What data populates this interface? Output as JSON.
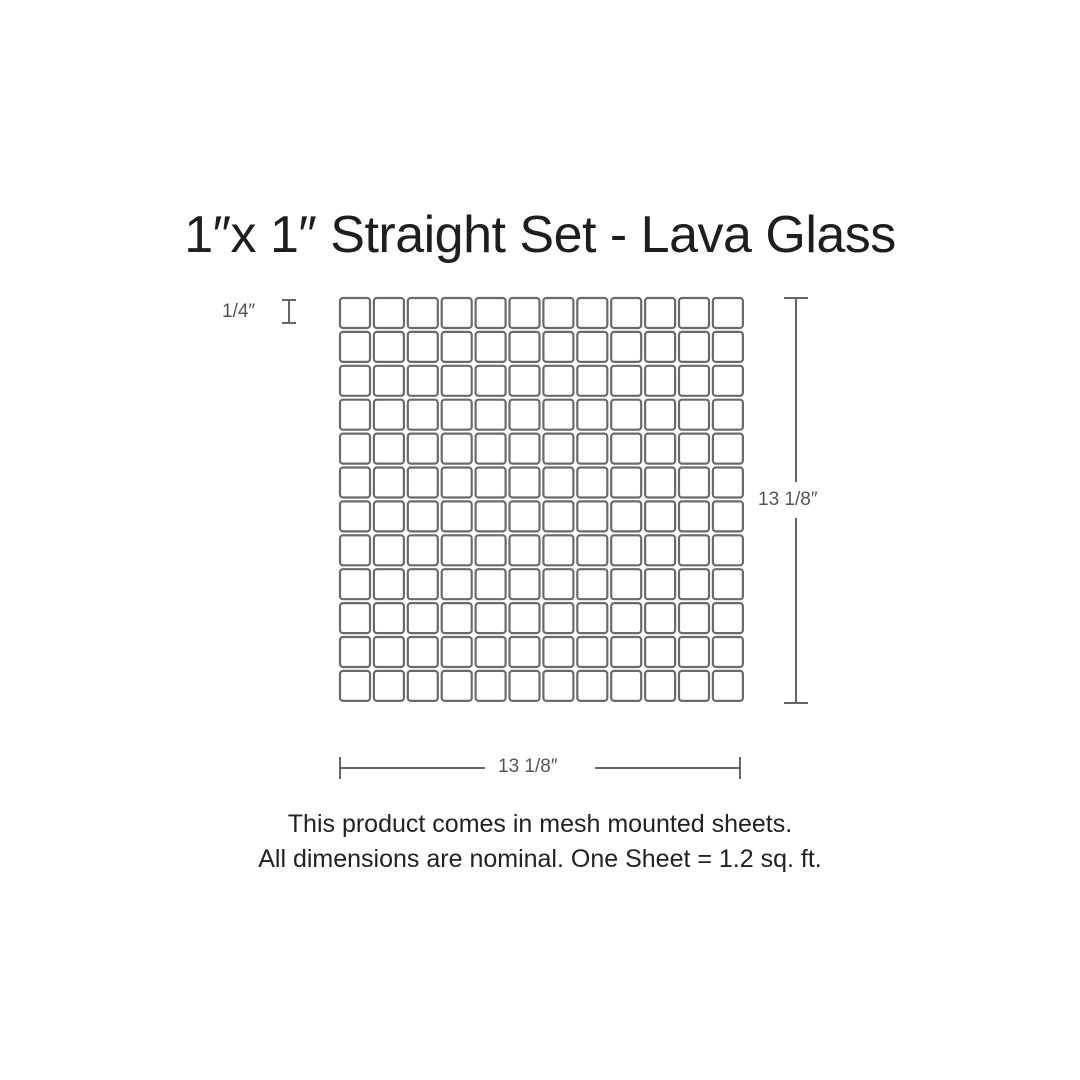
{
  "title": "1″x 1″ Straight Set - Lava Glass",
  "grout_label": "1/4″",
  "height_label": "13 1/8″",
  "width_label": "13 1/8″",
  "grid": {
    "rows": 12,
    "columns": 12,
    "tile_stroke": "#6a6a6a"
  },
  "notes": [
    "This product comes in mesh mounted sheets.",
    "All dimensions are nominal. One Sheet = 1.2 sq. ft."
  ]
}
